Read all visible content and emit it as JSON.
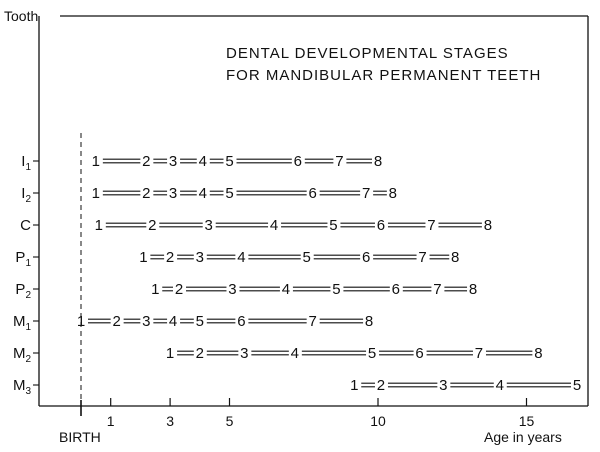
{
  "chart_data": {
    "type": "timeline",
    "title_lines": [
      "DENTAL DEVELOPMENTAL STAGES",
      "FOR MANDIBULAR PERMANENT TEETH"
    ],
    "ylabel": "Tooth",
    "xlabel": "Age in years",
    "birth_label": "BIRTH",
    "x_ticks": [
      1,
      3,
      5,
      10,
      15
    ],
    "xlim": [
      -1.5,
      17
    ],
    "grid": false,
    "teeth": [
      {
        "base": "I",
        "sub": "1",
        "stages": [
          {
            "label": "1",
            "age": 0.5
          },
          {
            "label": "2",
            "age": 2.2
          },
          {
            "label": "3",
            "age": 3.1
          },
          {
            "label": "4",
            "age": 4.1
          },
          {
            "label": "5",
            "age": 5.0
          },
          {
            "label": "6",
            "age": 7.3
          },
          {
            "label": "7",
            "age": 8.7
          },
          {
            "label": "8",
            "age": 10.0
          }
        ]
      },
      {
        "base": "I",
        "sub": "2",
        "stages": [
          {
            "label": "1",
            "age": 0.5
          },
          {
            "label": "2",
            "age": 2.2
          },
          {
            "label": "3",
            "age": 3.1
          },
          {
            "label": "4",
            "age": 4.1
          },
          {
            "label": "5",
            "age": 5.0
          },
          {
            "label": "6",
            "age": 7.8
          },
          {
            "label": "7",
            "age": 9.6
          },
          {
            "label": "8",
            "age": 10.5
          }
        ]
      },
      {
        "base": "C",
        "sub": "",
        "stages": [
          {
            "label": "1",
            "age": 0.6
          },
          {
            "label": "2",
            "age": 2.4
          },
          {
            "label": "3",
            "age": 4.3
          },
          {
            "label": "4",
            "age": 6.5
          },
          {
            "label": "5",
            "age": 8.5
          },
          {
            "label": "6",
            "age": 10.1
          },
          {
            "label": "7",
            "age": 11.8
          },
          {
            "label": "8",
            "age": 13.7
          }
        ]
      },
      {
        "base": "P",
        "sub": "1",
        "stages": [
          {
            "label": "1",
            "age": 2.1
          },
          {
            "label": "2",
            "age": 3.0
          },
          {
            "label": "3",
            "age": 4.0
          },
          {
            "label": "4",
            "age": 5.4
          },
          {
            "label": "5",
            "age": 7.6
          },
          {
            "label": "6",
            "age": 9.6
          },
          {
            "label": "7",
            "age": 11.5
          },
          {
            "label": "8",
            "age": 12.6
          }
        ]
      },
      {
        "base": "P",
        "sub": "2",
        "stages": [
          {
            "label": "1",
            "age": 2.5
          },
          {
            "label": "2",
            "age": 3.3
          },
          {
            "label": "3",
            "age": 5.1
          },
          {
            "label": "4",
            "age": 6.9
          },
          {
            "label": "5",
            "age": 8.6
          },
          {
            "label": "6",
            "age": 10.6
          },
          {
            "label": "7",
            "age": 12.0
          },
          {
            "label": "8",
            "age": 13.2
          }
        ]
      },
      {
        "base": "M",
        "sub": "1",
        "stages": [
          {
            "label": "1",
            "age": 0.0
          },
          {
            "label": "2",
            "age": 1.2
          },
          {
            "label": "3",
            "age": 2.2
          },
          {
            "label": "4",
            "age": 3.1
          },
          {
            "label": "5",
            "age": 4.0
          },
          {
            "label": "6",
            "age": 5.4
          },
          {
            "label": "7",
            "age": 7.8
          },
          {
            "label": "8",
            "age": 9.7
          }
        ]
      },
      {
        "base": "M",
        "sub": "2",
        "stages": [
          {
            "label": "1",
            "age": 3.0
          },
          {
            "label": "2",
            "age": 4.0
          },
          {
            "label": "3",
            "age": 5.5
          },
          {
            "label": "4",
            "age": 7.2
          },
          {
            "label": "5",
            "age": 9.8
          },
          {
            "label": "6",
            "age": 11.4
          },
          {
            "label": "7",
            "age": 13.4
          },
          {
            "label": "8",
            "age": 15.4
          }
        ]
      },
      {
        "base": "M",
        "sub": "3",
        "stages": [
          {
            "label": "1",
            "age": 9.2
          },
          {
            "label": "2",
            "age": 10.1
          },
          {
            "label": "3",
            "age": 12.2
          },
          {
            "label": "4",
            "age": 14.1
          },
          {
            "label": "5",
            "age": 16.7
          }
        ]
      }
    ]
  }
}
